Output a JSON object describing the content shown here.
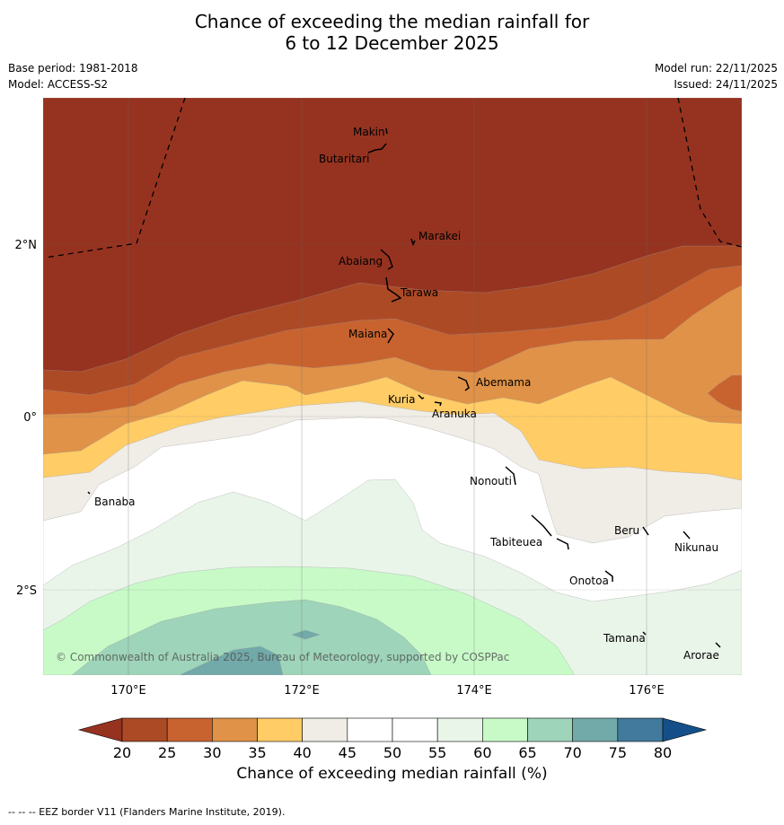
{
  "title": {
    "line1": "Chance of exceeding the median rainfall for",
    "line2": "6 to 12 December 2025"
  },
  "meta": {
    "base_period": "Base period: 1981-2018",
    "model": "Model: ACCESS-S2",
    "model_run": "Model run: 22/11/2025",
    "issued": "Issued: 24/11/2025"
  },
  "map": {
    "lon_ticks": [
      "170°E",
      "172°E",
      "174°E",
      "176°E"
    ],
    "lat_ticks": [
      "2°N",
      "0°",
      "2°S"
    ],
    "copyright": "© Commonwealth of Australia 2025, Bureau of Meteorology, supported by COSPPac",
    "places": [
      "Makin",
      "Butaritari",
      "Marakei",
      "Abaiang",
      "Tarawa",
      "Maiana",
      "Abemama",
      "Kuria",
      "Aranuka",
      "Nonouti",
      "Banaba",
      "Beru",
      "Nikunau",
      "Tabiteuea",
      "Onotoa",
      "Tamana",
      "Arorae"
    ]
  },
  "colorbar": {
    "ticks": [
      "20",
      "25",
      "30",
      "35",
      "40",
      "45",
      "50",
      "55",
      "60",
      "65",
      "70",
      "75",
      "80"
    ],
    "label": "Chance of exceeding median rainfall (%)",
    "colors": {
      "below20": "#963320",
      "c20_25": "#ad4a26",
      "c25_30": "#c8632f",
      "c30_35": "#e09248",
      "c35_40": "#ffcc66",
      "c40_45": "#f0ece6",
      "c45_55": "#ffffff",
      "c55_60": "#eaf5ea",
      "c60_65": "#c8fac8",
      "c65_70": "#9ed4b9",
      "c70_75": "#72a9a9",
      "c75_80": "#417a9c",
      "above80": "#154f89"
    }
  },
  "footer": "-- -- -- EEZ border V11 (Flanders Marine Institute, 2019)."
}
